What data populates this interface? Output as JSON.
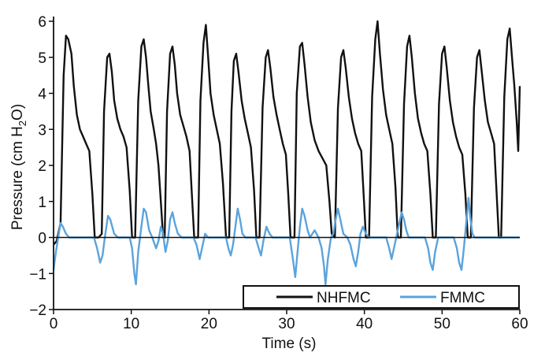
{
  "chart_data": {
    "type": "line",
    "xlabel": "Time (s)",
    "ylabel": {
      "prefix": "Pressure (cm H",
      "subscript": "2",
      "suffix": "O)"
    },
    "xlim": [
      0,
      60
    ],
    "ylim": [
      -2,
      6
    ],
    "xticks": [
      "0",
      "10",
      "20",
      "30",
      "40",
      "50",
      "60"
    ],
    "yticks": [
      "−2",
      "−1",
      "0",
      "1",
      "2",
      "3",
      "4",
      "5",
      "6"
    ],
    "zero_line": true,
    "legend_position": "bottom-right",
    "series": [
      {
        "name": "NHFMC",
        "color": "#111111",
        "points": [
          [
            0,
            -0.2
          ],
          [
            0.4,
            -0.1
          ],
          [
            0.9,
            0.4
          ],
          [
            1.3,
            4.5
          ],
          [
            1.6,
            5.6
          ],
          [
            1.9,
            5.5
          ],
          [
            2.3,
            5.1
          ],
          [
            2.6,
            4.2
          ],
          [
            3.0,
            3.4
          ],
          [
            3.4,
            3.0
          ],
          [
            3.8,
            2.8
          ],
          [
            4.2,
            2.6
          ],
          [
            4.6,
            2.4
          ],
          [
            5.0,
            1.2
          ],
          [
            5.3,
            0.0
          ],
          [
            5.8,
            0.0
          ],
          [
            6.2,
            0.1
          ],
          [
            6.5,
            3.5
          ],
          [
            6.9,
            5.0
          ],
          [
            7.2,
            5.1
          ],
          [
            7.5,
            4.6
          ],
          [
            7.8,
            3.8
          ],
          [
            8.2,
            3.3
          ],
          [
            8.6,
            3.0
          ],
          [
            9.0,
            2.8
          ],
          [
            9.4,
            2.5
          ],
          [
            9.8,
            1.3
          ],
          [
            10.1,
            0.0
          ],
          [
            10.5,
            0.0
          ],
          [
            10.9,
            3.8
          ],
          [
            11.3,
            5.3
          ],
          [
            11.6,
            5.5
          ],
          [
            11.9,
            5.0
          ],
          [
            12.2,
            4.2
          ],
          [
            12.5,
            3.5
          ],
          [
            12.9,
            3.0
          ],
          [
            13.2,
            2.6
          ],
          [
            13.5,
            2.0
          ],
          [
            13.8,
            1.0
          ],
          [
            14.1,
            0.0
          ],
          [
            14.3,
            0.0
          ],
          [
            14.6,
            3.5
          ],
          [
            15.0,
            5.1
          ],
          [
            15.3,
            5.3
          ],
          [
            15.6,
            4.8
          ],
          [
            15.9,
            4.0
          ],
          [
            16.3,
            3.4
          ],
          [
            16.7,
            3.1
          ],
          [
            17.1,
            2.8
          ],
          [
            17.5,
            2.4
          ],
          [
            17.8,
            1.2
          ],
          [
            18.1,
            0.0
          ],
          [
            18.6,
            0.0
          ],
          [
            18.9,
            3.8
          ],
          [
            19.3,
            5.4
          ],
          [
            19.6,
            5.9
          ],
          [
            19.9,
            5.0
          ],
          [
            20.2,
            4.0
          ],
          [
            20.6,
            3.4
          ],
          [
            21.0,
            3.0
          ],
          [
            21.4,
            2.6
          ],
          [
            21.8,
            1.5
          ],
          [
            22.2,
            0.0
          ],
          [
            22.6,
            0.0
          ],
          [
            22.9,
            3.5
          ],
          [
            23.2,
            4.9
          ],
          [
            23.5,
            5.1
          ],
          [
            23.8,
            4.6
          ],
          [
            24.2,
            3.8
          ],
          [
            24.6,
            3.3
          ],
          [
            25.0,
            2.9
          ],
          [
            25.4,
            2.5
          ],
          [
            25.8,
            1.3
          ],
          [
            26.1,
            0.0
          ],
          [
            26.5,
            0.0
          ],
          [
            26.9,
            3.6
          ],
          [
            27.3,
            5.0
          ],
          [
            27.6,
            5.2
          ],
          [
            27.9,
            4.7
          ],
          [
            28.3,
            3.9
          ],
          [
            28.7,
            3.4
          ],
          [
            29.1,
            3.0
          ],
          [
            29.5,
            2.6
          ],
          [
            29.9,
            2.3
          ],
          [
            30.2,
            1.2
          ],
          [
            30.5,
            0.0
          ],
          [
            31.0,
            0.0
          ],
          [
            31.3,
            4.0
          ],
          [
            31.7,
            5.3
          ],
          [
            32.0,
            5.4
          ],
          [
            32.3,
            4.8
          ],
          [
            32.7,
            3.9
          ],
          [
            33.1,
            3.2
          ],
          [
            33.6,
            2.7
          ],
          [
            34.1,
            2.4
          ],
          [
            34.6,
            2.2
          ],
          [
            35.1,
            2.0
          ],
          [
            35.5,
            1.0
          ],
          [
            35.8,
            0.1
          ],
          [
            36.2,
            0.0
          ],
          [
            36.6,
            3.6
          ],
          [
            37.0,
            5.0
          ],
          [
            37.3,
            5.2
          ],
          [
            37.6,
            4.7
          ],
          [
            38.0,
            3.9
          ],
          [
            38.4,
            3.3
          ],
          [
            38.8,
            2.9
          ],
          [
            39.2,
            2.6
          ],
          [
            39.6,
            2.4
          ],
          [
            39.9,
            1.2
          ],
          [
            40.2,
            0.0
          ],
          [
            40.6,
            0.0
          ],
          [
            41.0,
            3.9
          ],
          [
            41.4,
            5.5
          ],
          [
            41.7,
            6.0
          ],
          [
            42.0,
            5.1
          ],
          [
            42.4,
            4.1
          ],
          [
            42.8,
            3.4
          ],
          [
            43.2,
            3.0
          ],
          [
            43.6,
            2.6
          ],
          [
            44.0,
            1.4
          ],
          [
            44.3,
            0.0
          ],
          [
            44.7,
            0.0
          ],
          [
            45.1,
            3.7
          ],
          [
            45.5,
            5.3
          ],
          [
            45.8,
            5.6
          ],
          [
            46.1,
            5.0
          ],
          [
            46.5,
            4.0
          ],
          [
            46.9,
            3.3
          ],
          [
            47.3,
            2.9
          ],
          [
            47.7,
            2.6
          ],
          [
            48.1,
            2.4
          ],
          [
            48.5,
            1.2
          ],
          [
            48.8,
            0.0
          ],
          [
            49.2,
            0.0
          ],
          [
            49.6,
            3.7
          ],
          [
            50.0,
            5.1
          ],
          [
            50.3,
            5.3
          ],
          [
            50.6,
            4.7
          ],
          [
            51.0,
            3.8
          ],
          [
            51.4,
            3.2
          ],
          [
            51.8,
            2.8
          ],
          [
            52.2,
            2.5
          ],
          [
            52.6,
            2.3
          ],
          [
            53.0,
            1.2
          ],
          [
            53.3,
            0.0
          ],
          [
            53.7,
            0.0
          ],
          [
            54.1,
            3.6
          ],
          [
            54.5,
            5.0
          ],
          [
            54.8,
            5.2
          ],
          [
            55.1,
            4.6
          ],
          [
            55.5,
            3.8
          ],
          [
            55.9,
            3.2
          ],
          [
            56.3,
            2.9
          ],
          [
            56.7,
            2.6
          ],
          [
            57.0,
            1.3
          ],
          [
            57.3,
            0.0
          ],
          [
            57.6,
            0.0
          ],
          [
            58.0,
            3.9
          ],
          [
            58.4,
            5.5
          ],
          [
            58.7,
            5.8
          ],
          [
            59.0,
            5.0
          ],
          [
            59.3,
            4.2
          ],
          [
            59.6,
            3.2
          ],
          [
            59.8,
            2.4
          ],
          [
            60.0,
            4.2
          ]
        ]
      },
      {
        "name": "FMMC",
        "color": "#5ba3dc",
        "points": [
          [
            0,
            -0.9
          ],
          [
            0.3,
            -0.4
          ],
          [
            0.6,
            0.0
          ],
          [
            0.9,
            0.4
          ],
          [
            1.2,
            0.3
          ],
          [
            1.6,
            0.1
          ],
          [
            2.0,
            0.0
          ],
          [
            5.2,
            0.0
          ],
          [
            5.6,
            -0.3
          ],
          [
            6.0,
            -0.7
          ],
          [
            6.3,
            -0.5
          ],
          [
            6.6,
            0.0
          ],
          [
            7.0,
            0.6
          ],
          [
            7.3,
            0.5
          ],
          [
            7.8,
            0.1
          ],
          [
            8.3,
            0.0
          ],
          [
            9.8,
            0.0
          ],
          [
            10.1,
            -0.3
          ],
          [
            10.4,
            -1.0
          ],
          [
            10.6,
            -1.3
          ],
          [
            10.9,
            -0.4
          ],
          [
            11.3,
            0.3
          ],
          [
            11.6,
            0.8
          ],
          [
            11.9,
            0.7
          ],
          [
            12.3,
            0.2
          ],
          [
            12.7,
            0.0
          ],
          [
            13.2,
            -0.3
          ],
          [
            13.5,
            -0.1
          ],
          [
            13.8,
            0.3
          ],
          [
            14.1,
            0.1
          ],
          [
            14.4,
            -0.4
          ],
          [
            14.7,
            -0.1
          ],
          [
            15.0,
            0.5
          ],
          [
            15.3,
            0.7
          ],
          [
            15.6,
            0.4
          ],
          [
            16.0,
            0.1
          ],
          [
            16.5,
            0.0
          ],
          [
            18.0,
            0.0
          ],
          [
            18.4,
            -0.2
          ],
          [
            18.8,
            -0.6
          ],
          [
            19.1,
            -0.3
          ],
          [
            19.5,
            0.1
          ],
          [
            19.9,
            0.0
          ],
          [
            22.2,
            0.0
          ],
          [
            22.5,
            -0.3
          ],
          [
            22.8,
            -0.5
          ],
          [
            23.1,
            -0.2
          ],
          [
            23.4,
            0.3
          ],
          [
            23.7,
            0.8
          ],
          [
            24.0,
            0.5
          ],
          [
            24.3,
            0.1
          ],
          [
            24.7,
            0.0
          ],
          [
            26.0,
            0.0
          ],
          [
            26.4,
            -0.3
          ],
          [
            26.7,
            -0.5
          ],
          [
            27.0,
            -0.1
          ],
          [
            27.4,
            0.3
          ],
          [
            27.8,
            0.1
          ],
          [
            28.2,
            0.0
          ],
          [
            30.4,
            0.0
          ],
          [
            30.8,
            -0.6
          ],
          [
            31.1,
            -1.1
          ],
          [
            31.4,
            -0.4
          ],
          [
            31.7,
            0.3
          ],
          [
            32.0,
            0.8
          ],
          [
            32.3,
            0.6
          ],
          [
            32.7,
            0.2
          ],
          [
            33.0,
            0.0
          ],
          [
            33.6,
            0.2
          ],
          [
            34.1,
            0.0
          ],
          [
            34.5,
            -0.3
          ],
          [
            34.8,
            -0.8
          ],
          [
            35.0,
            -1.3
          ],
          [
            35.3,
            -0.6
          ],
          [
            35.7,
            0.0
          ],
          [
            36.0,
            0.1
          ],
          [
            36.3,
            0.5
          ],
          [
            36.6,
            0.8
          ],
          [
            36.9,
            0.5
          ],
          [
            37.3,
            0.1
          ],
          [
            37.8,
            0.0
          ],
          [
            38.2,
            -0.2
          ],
          [
            38.6,
            -0.6
          ],
          [
            38.9,
            -0.8
          ],
          [
            39.2,
            -0.4
          ],
          [
            39.5,
            0.1
          ],
          [
            39.8,
            0.3
          ],
          [
            40.2,
            0.1
          ],
          [
            40.6,
            0.0
          ],
          [
            42.8,
            0.0
          ],
          [
            43.2,
            -0.3
          ],
          [
            43.5,
            -0.6
          ],
          [
            43.8,
            -0.3
          ],
          [
            44.2,
            0.1
          ],
          [
            44.5,
            0.4
          ],
          [
            44.8,
            0.7
          ],
          [
            45.1,
            0.5
          ],
          [
            45.4,
            0.2
          ],
          [
            45.7,
            0.0
          ],
          [
            46.3,
            0.0
          ],
          [
            47.8,
            0.0
          ],
          [
            48.2,
            -0.3
          ],
          [
            48.5,
            -0.7
          ],
          [
            48.8,
            -0.9
          ],
          [
            49.1,
            -0.4
          ],
          [
            49.5,
            0.0
          ],
          [
            51.5,
            0.0
          ],
          [
            51.9,
            -0.3
          ],
          [
            52.2,
            -0.7
          ],
          [
            52.5,
            -0.9
          ],
          [
            52.8,
            -0.3
          ],
          [
            53.1,
            0.4
          ],
          [
            53.4,
            1.1
          ],
          [
            53.6,
            0.6
          ],
          [
            53.9,
            0.1
          ],
          [
            54.2,
            0.0
          ],
          [
            60.0,
            0.0
          ]
        ]
      }
    ]
  }
}
